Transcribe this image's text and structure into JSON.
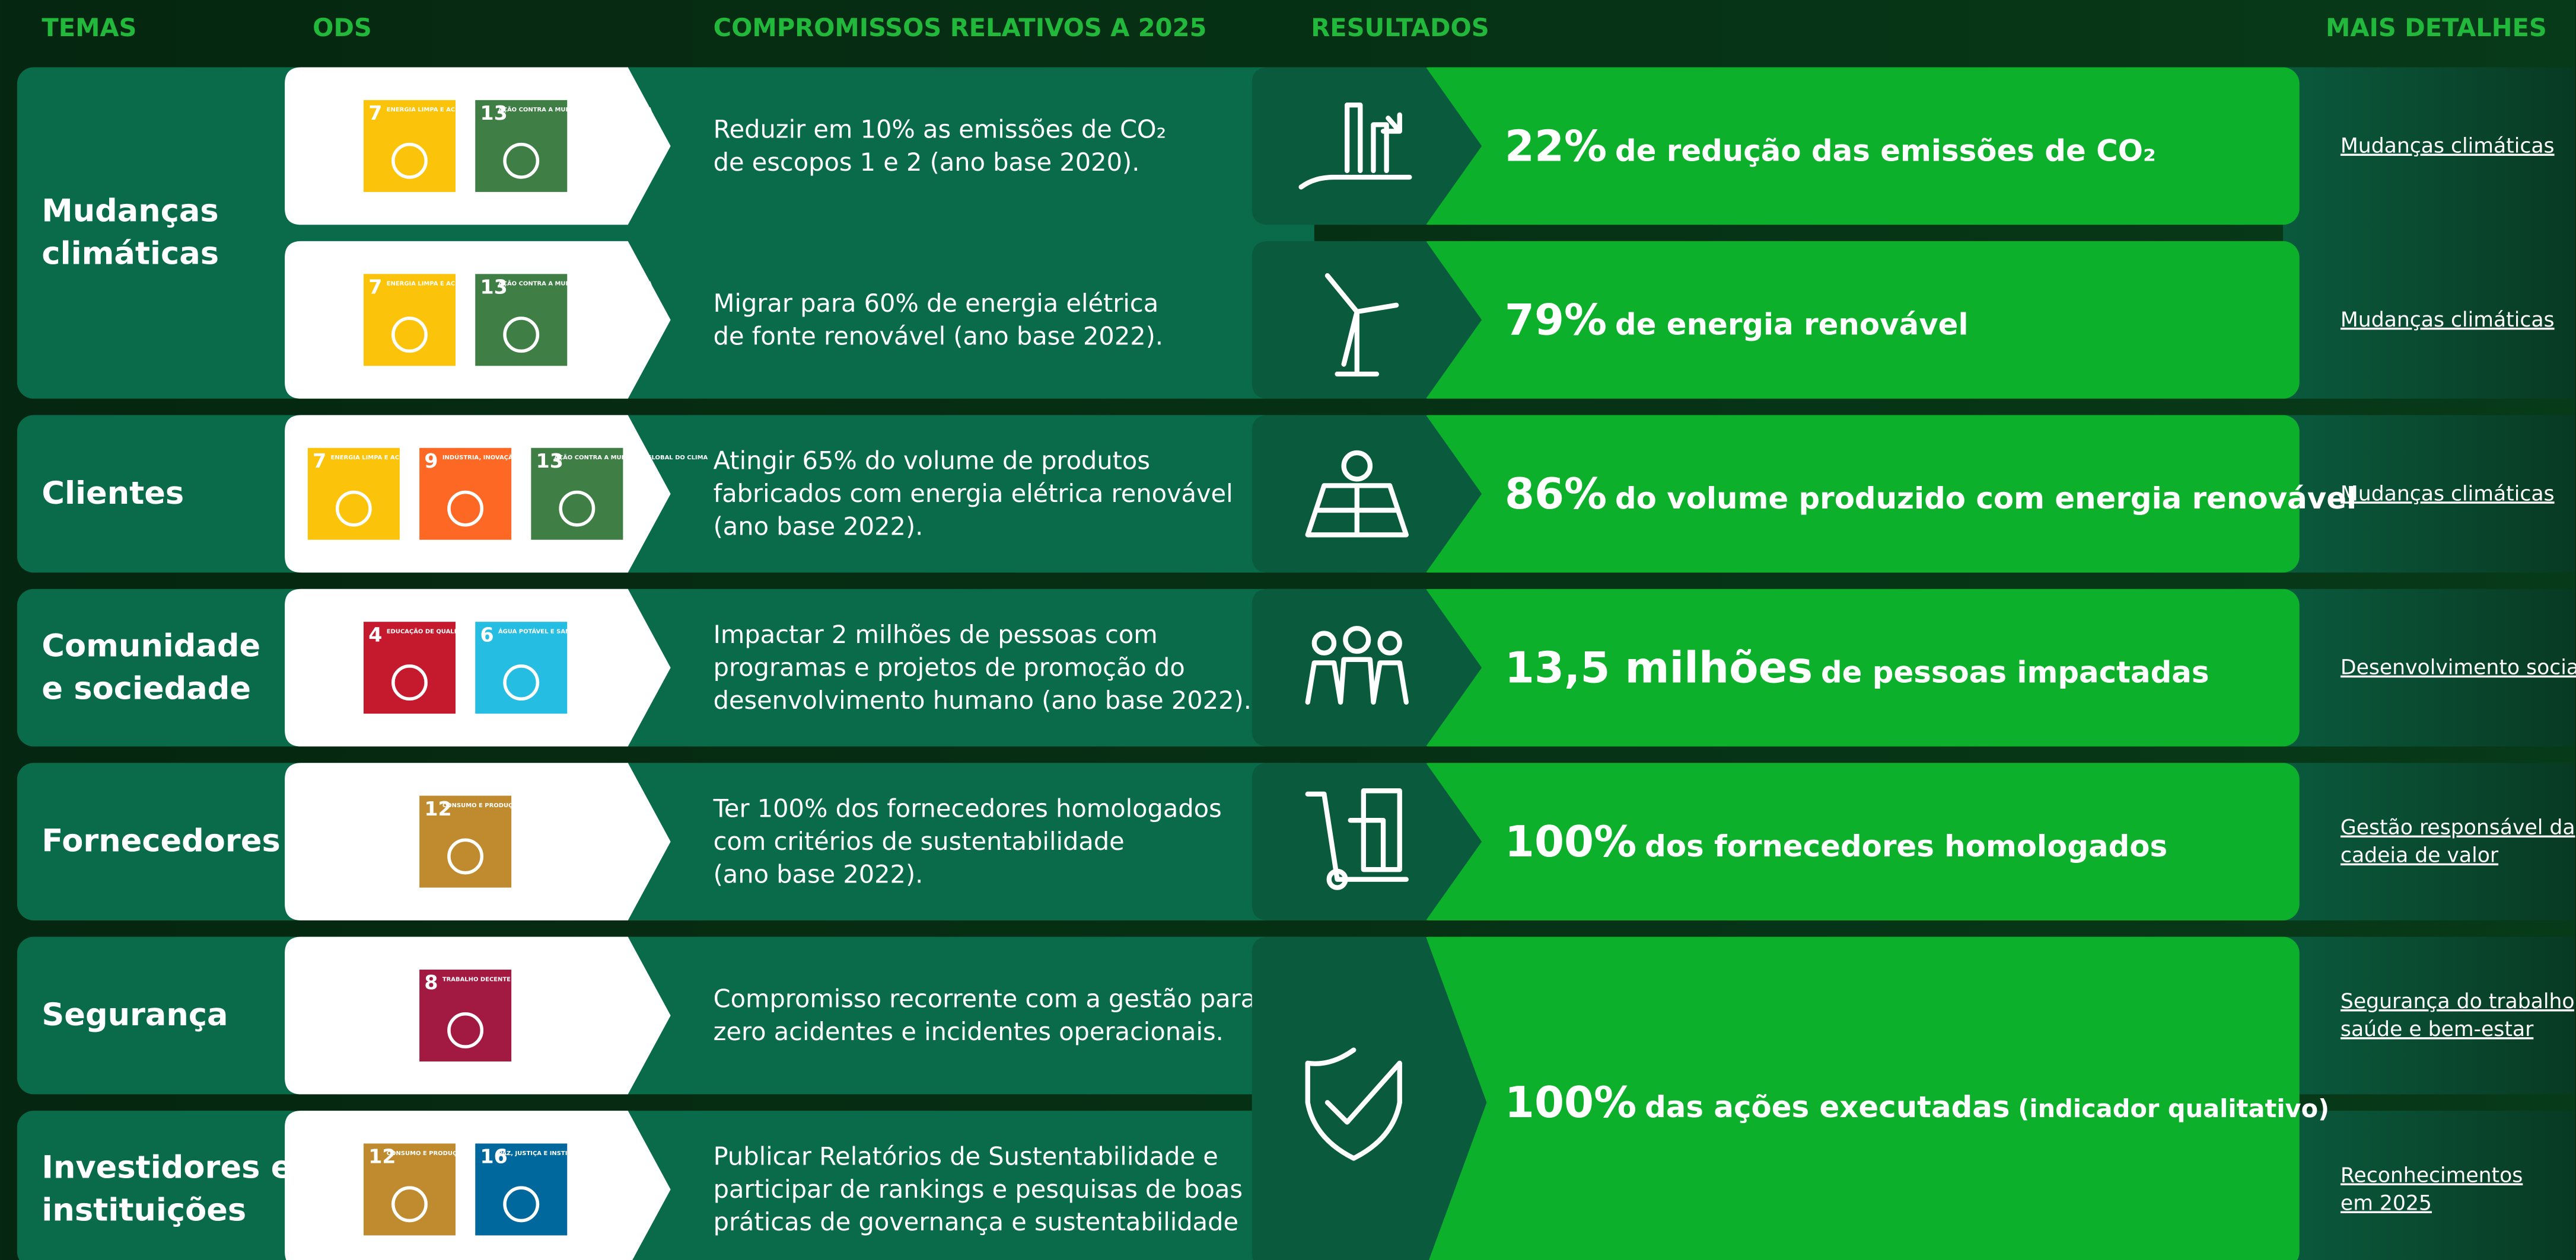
{
  "headers": [
    "TEMAS",
    "ODS",
    "COMPROMISSOS RELATIVOS A 2025",
    "RESULTADOS",
    "MAIS DETALHES"
  ],
  "themes": [
    {
      "lines": [
        "Mudanças",
        "climáticas"
      ],
      "rows": 2
    },
    {
      "lines": [
        "Clientes"
      ],
      "rows": 1
    },
    {
      "lines": [
        "Comunidade",
        "e sociedade"
      ],
      "rows": 1
    },
    {
      "lines": [
        "Fornecedores"
      ],
      "rows": 1
    },
    {
      "lines": [
        "Segurança"
      ],
      "rows": 1
    },
    {
      "lines": [
        "Investidores e",
        "instituições"
      ],
      "rows": 1
    }
  ],
  "rows": [
    {
      "ods": [
        {
          "number": "7",
          "label": "ENERGIA LIMPA E ACESSÍVEL",
          "color": "#fcc30b"
        },
        {
          "number": "13",
          "label": "AÇÃO CONTRA A MUDANÇA GLOBAL DO CLIMA",
          "color": "#3f7e44"
        }
      ],
      "commitment": [
        "Reduzir em 10% as emissões de CO₂",
        "de escopos 1 e 2 (ano base 2020)."
      ],
      "details": [
        "Mudanças climáticas"
      ]
    },
    {
      "ods": [
        {
          "number": "7",
          "label": "ENERGIA LIMPA E ACESSÍVEL",
          "color": "#fcc30b"
        },
        {
          "number": "13",
          "label": "AÇÃO CONTRA A MUDANÇA GLOBAL DO CLIMA",
          "color": "#3f7e44"
        }
      ],
      "commitment": [
        "Migrar para 60% de energia elétrica",
        "de fonte renovável (ano base 2022)."
      ],
      "details": [
        "Mudanças climáticas"
      ]
    },
    {
      "ods": [
        {
          "number": "7",
          "label": "ENERGIA LIMPA E ACESSÍVEL",
          "color": "#fcc30b"
        },
        {
          "number": "9",
          "label": "INDÚSTRIA, INOVAÇÃO E INFRAESTRUTURA",
          "color": "#fd6925"
        },
        {
          "number": "13",
          "label": "AÇÃO CONTRA A MUDANÇA GLOBAL DO CLIMA",
          "color": "#3f7e44"
        }
      ],
      "commitment": [
        "Atingir 65% do volume de produtos",
        "fabricados com energia elétrica renovável",
        "(ano base 2022)."
      ],
      "details": [
        "Mudanças climáticas"
      ]
    },
    {
      "ods": [
        {
          "number": "4",
          "label": "EDUCAÇÃO DE QUALIDADE",
          "color": "#c5192d"
        },
        {
          "number": "6",
          "label": "ÁGUA POTÁVEL E SANEAMENTO",
          "color": "#26bde2"
        }
      ],
      "commitment": [
        "Impactar 2 milhões de pessoas com",
        "programas e projetos de promoção do",
        "desenvolvimento humano (ano base 2022)."
      ],
      "details": [
        "Desenvolvimento social"
      ]
    },
    {
      "ods": [
        {
          "number": "12",
          "label": "CONSUMO E PRODUÇÃO RESPONSÁVEIS",
          "color": "#bf8b2e"
        }
      ],
      "commitment": [
        "Ter 100% dos fornecedores homologados",
        "com critérios de sustentabilidade",
        "(ano base 2022)."
      ],
      "details": [
        "Gestão responsável da",
        "cadeia de valor"
      ]
    },
    {
      "ods": [
        {
          "number": "8",
          "label": "TRABALHO DECENTE E CRESCIMENTO ECONÔMICO",
          "color": "#a21942"
        }
      ],
      "commitment": [
        "Compromisso recorrente com a gestão para",
        "zero acidentes e incidentes operacionais."
      ],
      "details": [
        "Segurança do trabalho,",
        "saúde e bem-estar"
      ]
    },
    {
      "ods": [
        {
          "number": "12",
          "label": "CONSUMO E PRODUÇÃO RESPONSÁVEIS",
          "color": "#bf8b2e"
        },
        {
          "number": "16",
          "label": "PAZ, JUSTIÇA E INSTITUIÇÕES EFICAZES",
          "color": "#00689d"
        }
      ],
      "commitment": [
        "Publicar Relatórios de Sustentabilidade e",
        "participar de rankings e pesquisas de boas",
        "práticas de governança e sustentabilidade"
      ],
      "details": [
        "Reconhecimentos",
        "em 2025"
      ]
    }
  ],
  "results": [
    {
      "highlight": "22%",
      "text": "de redução das emissões de CO₂",
      "rows": 1
    },
    {
      "highlight": "79%",
      "text": "de energia renovável",
      "rows": 1
    },
    {
      "highlight": "86%",
      "text": "do volume produzido com energia renovável",
      "rows": 1
    },
    {
      "highlight": "13,5 milhões",
      "text": "de pessoas impactadas",
      "rows": 1
    },
    {
      "highlight": "100%",
      "text": "dos fornecedores homologados",
      "rows": 1
    },
    {
      "highlight": "100%",
      "text": "das ações executadas",
      "note": "(indicador qualitativo)",
      "rows": 2
    }
  ]
}
